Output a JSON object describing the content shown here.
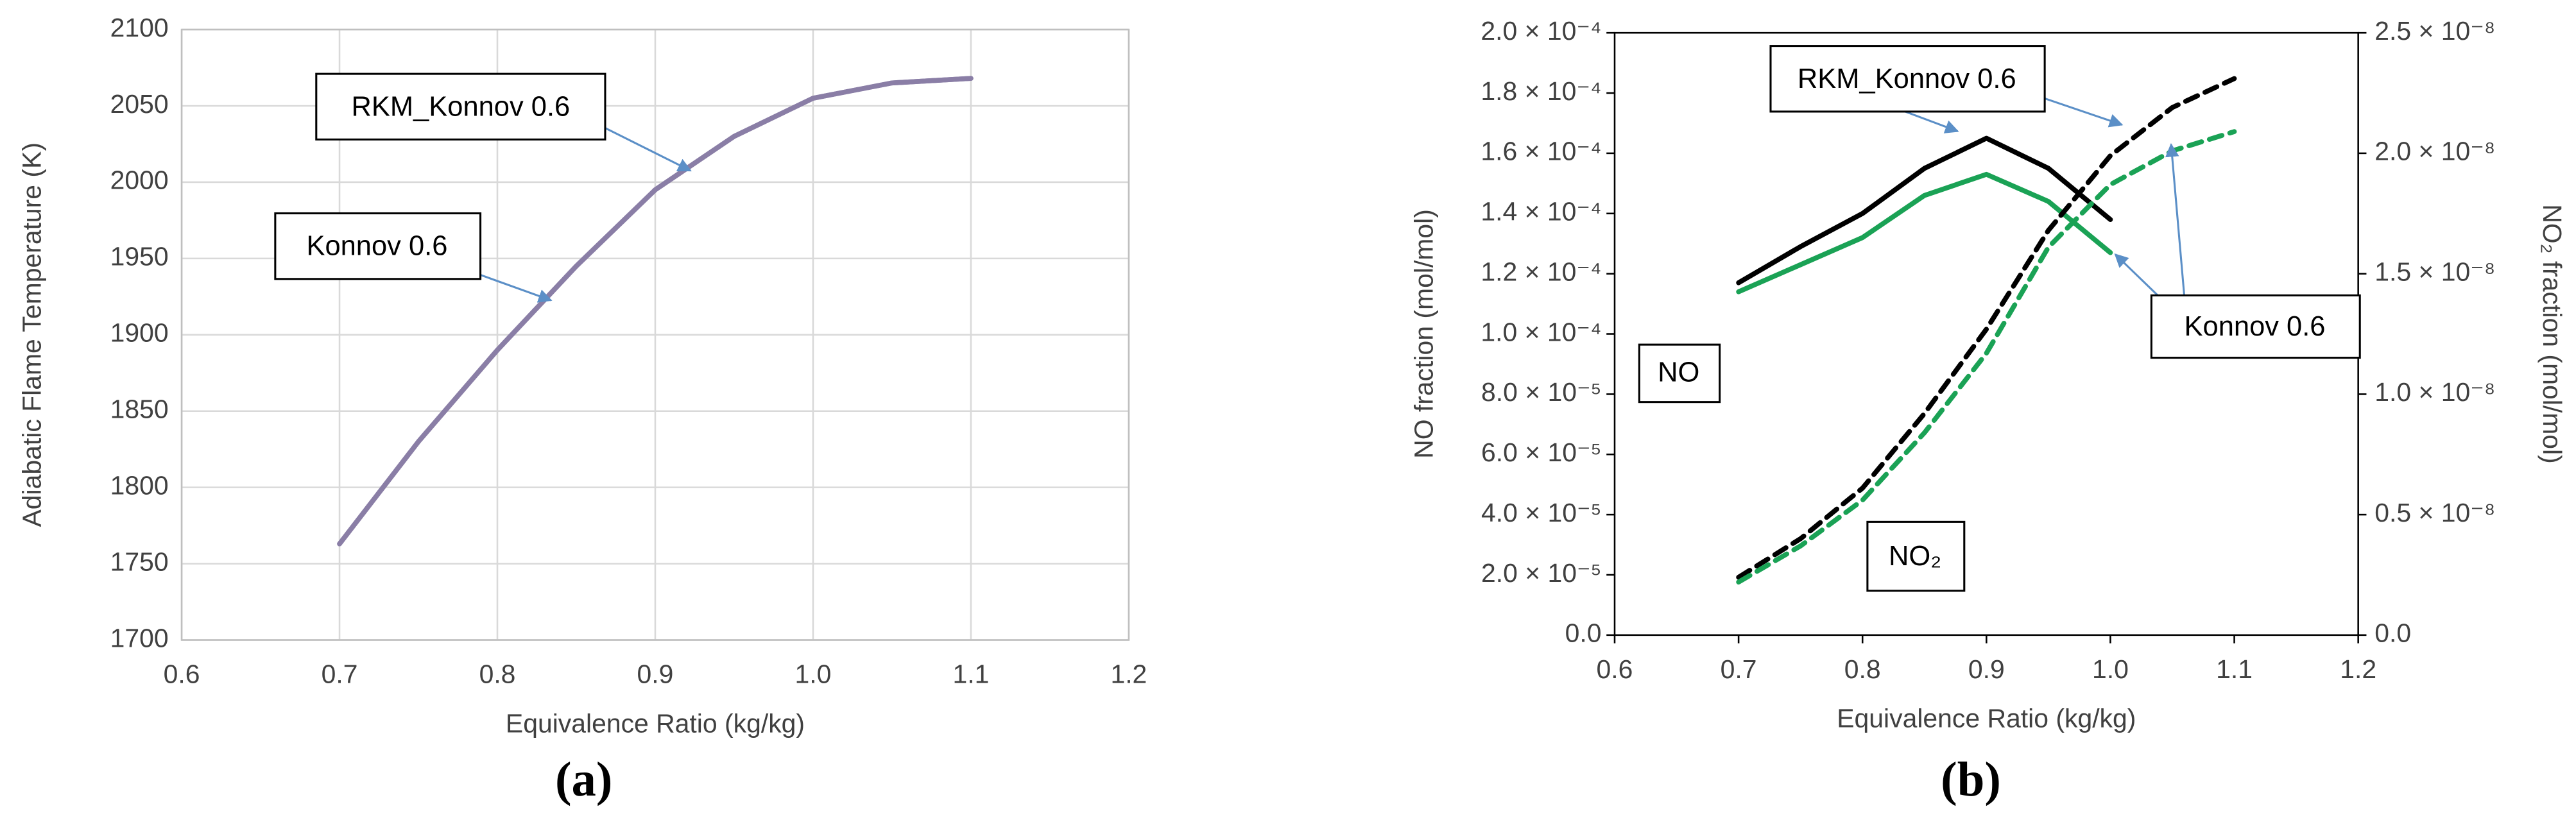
{
  "chart_data": [
    {
      "type": "line",
      "caption": "(a)",
      "xlabel": "Equivalence  Ratio (kg/kg)",
      "ylabel": "Adiabatic Flame Temperature (K)",
      "x": [
        0.7,
        0.75,
        0.8,
        0.85,
        0.9,
        0.95,
        1.0,
        1.05,
        1.1
      ],
      "series": [
        {
          "name": "RKM_Konnov 0.6",
          "color": "#8a7ea6",
          "values": [
            1763,
            1830,
            1890,
            1945,
            1995,
            2030,
            2055,
            2065,
            2068
          ]
        },
        {
          "name": "Konnov 0.6",
          "color": "#8a7ea6",
          "values": [
            1763,
            1830,
            1890,
            1945,
            1995,
            2030,
            2055,
            2065,
            2068
          ]
        }
      ],
      "xlim": [
        0.6,
        1.2
      ],
      "xticks": [
        0.6,
        0.7,
        0.8,
        0.9,
        {
          "value": 1,
          "label": "1.0"
        },
        1.1,
        1.2
      ],
      "ylim": [
        1700,
        2100
      ],
      "yticks": [
        1700,
        1750,
        1800,
        1850,
        1900,
        1950,
        2000,
        2050,
        2100
      ],
      "grid": true
    },
    {
      "type": "line",
      "caption": "(b)",
      "xlabel": "Equivalence  Ratio (kg/kg)",
      "ylabel": "NO fraction (mol/mol)",
      "y2label": "NO₂ fraction (mol/mol)",
      "annotations": [
        "NO",
        "NO₂"
      ],
      "x": [
        0.7,
        0.75,
        0.8,
        0.85,
        0.9,
        0.95,
        1.0,
        1.05,
        1.1
      ],
      "series": [
        {
          "name": "RKM_Konnov 0.6",
          "color": "#000000",
          "values": [
            0.000117,
            0.000129,
            0.00014,
            0.000155,
            0.000165,
            0.000155,
            0.000138,
            null,
            null
          ]
        },
        {
          "name": "Konnov 0.6",
          "color": "#1aa255",
          "values": [
            0.000114,
            0.000123,
            0.000132,
            0.000146,
            0.000153,
            0.000144,
            0.000127,
            null,
            null
          ]
        },
        {
          "color": "#000000",
          "dash": true,
          "axis": "y2",
          "values": [
            2.4e-09,
            4e-09,
            6.1e-09,
            9.2e-09,
            1.27e-08,
            1.68e-08,
            1.99e-08,
            2.19e-08,
            2.31e-08
          ]
        },
        {
          "color": "#1aa255",
          "dash": true,
          "axis": "y2",
          "values": [
            2.2e-09,
            3.7e-09,
            5.6e-09,
            8.4e-09,
            1.17e-08,
            1.61e-08,
            1.87e-08,
            2.01e-08,
            2.09e-08
          ]
        }
      ],
      "xlim": [
        0.6,
        1.2
      ],
      "xticks": [
        0.6,
        0.7,
        0.8,
        0.9,
        {
          "value": 1,
          "label": "1.0"
        },
        1.1,
        1.2
      ],
      "ylim": [
        0,
        0.0002
      ],
      "yticks": [
        {
          "value": 0,
          "label": "0.0"
        },
        {
          "value": 2e-05,
          "label": "2.0 × 10⁻⁵"
        },
        {
          "value": 4e-05,
          "label": "4.0 × 10⁻⁵"
        },
        {
          "value": 6e-05,
          "label": "6.0 × 10⁻⁵"
        },
        {
          "value": 8e-05,
          "label": "8.0 × 10⁻⁵"
        },
        {
          "value": 0.0001,
          "label": "1.0 × 10⁻⁴"
        },
        {
          "value": 0.00012,
          "label": "1.2 × 10⁻⁴"
        },
        {
          "value": 0.00014,
          "label": "1.4 × 10⁻⁴"
        },
        {
          "value": 0.00016,
          "label": "1.6 × 10⁻⁴"
        },
        {
          "value": 0.00018,
          "label": "1.8 × 10⁻⁴"
        },
        {
          "value": 0.0002,
          "label": "2.0 × 10⁻⁴"
        }
      ],
      "y2lim": [
        0,
        2.5e-08
      ],
      "y2ticks": [
        {
          "value": 0,
          "label": "0.0"
        },
        {
          "value": 5e-09,
          "label": "0.5 × 10⁻⁸"
        },
        {
          "value": 1e-08,
          "label": "1.0 × 10⁻⁸"
        },
        {
          "value": 1.5e-08,
          "label": "1.5 × 10⁻⁸"
        },
        {
          "value": 2e-08,
          "label": "2.0 × 10⁻⁸"
        },
        {
          "value": 2.5e-08,
          "label": "2.5 × 10⁻⁸"
        }
      ],
      "grid": false
    }
  ]
}
